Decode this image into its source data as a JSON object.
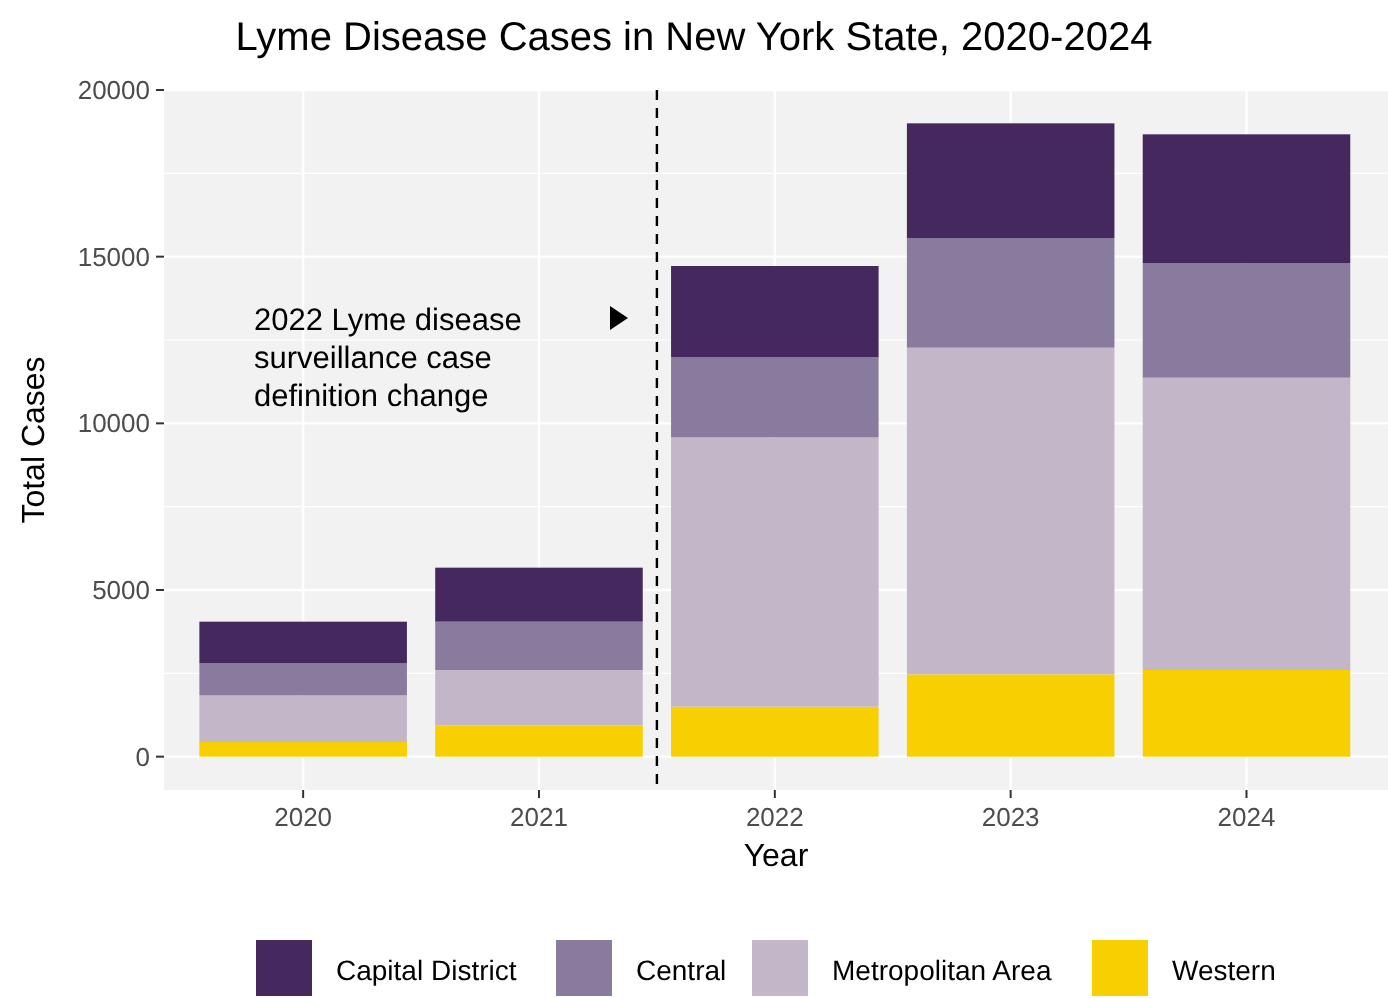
{
  "chart_data": {
    "type": "bar",
    "title": "Lyme Disease Cases in New York State, 2020-2024",
    "xlabel": "Year",
    "ylabel": "Total Cases",
    "x": [
      2020,
      2021,
      2022,
      2023,
      2024
    ],
    "xlim": [
      2019.41,
      2024.6
    ],
    "xticks": [
      2020,
      2021,
      2022,
      2023,
      2024
    ],
    "ylim": [
      -1000,
      20000
    ],
    "yticks": [
      0,
      5000,
      10000,
      15000,
      20000
    ],
    "stacked": true,
    "grid": true,
    "legend": "bottom",
    "series": [
      {
        "name": "Western",
        "color": "#f8cf00",
        "values": [
          440,
          940,
          1500,
          2470,
          2600
        ]
      },
      {
        "name": "Metropolitan Area",
        "color": "#c2b6c8",
        "values": [
          1400,
          1660,
          8080,
          9800,
          8770
        ]
      },
      {
        "name": "Central",
        "color": "#887b9e",
        "values": [
          960,
          1450,
          2410,
          3290,
          3430
        ]
      },
      {
        "name": "Capital District",
        "color": "#45295e",
        "values": [
          1250,
          1620,
          2730,
          3440,
          3870
        ]
      }
    ],
    "ref_lines": [
      {
        "axis": "x",
        "value": 2021.5,
        "line_style": "dashed",
        "color": "#000000"
      }
    ],
    "annotations": [
      "2022 Lyme disease\nsurveillance case\ndefinition change"
    ]
  }
}
